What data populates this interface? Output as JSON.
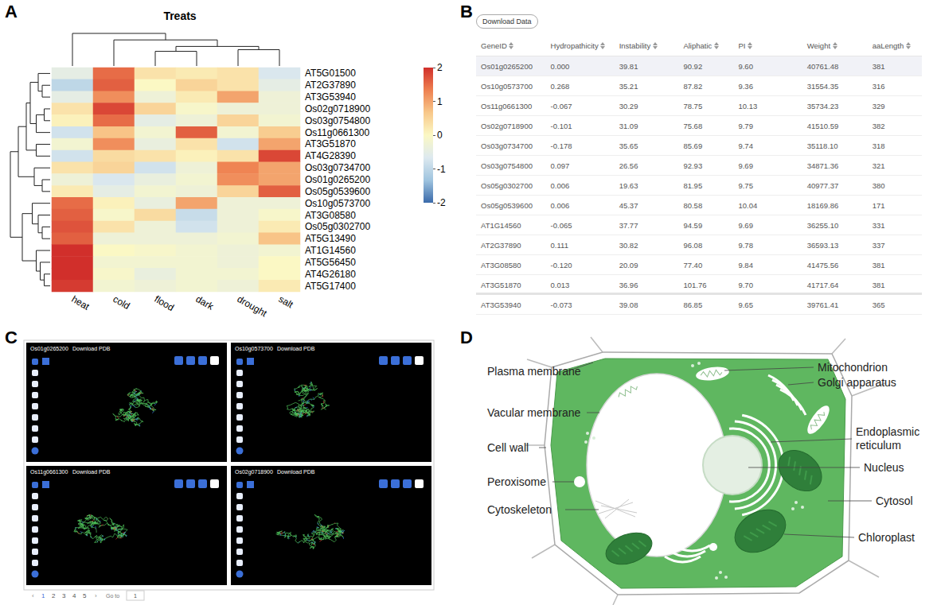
{
  "panel_labels": [
    "A",
    "B",
    "C",
    "D"
  ],
  "chart_data": {
    "type": "heatmap",
    "title": "Treats",
    "categories": [
      "heat",
      "cold",
      "flood",
      "dark",
      "drought",
      "salt"
    ],
    "rows": [
      "AT5G01500",
      "AT2G37890",
      "AT3G53940",
      "Os02g0718900",
      "Os03g0754800",
      "Os11g0661300",
      "AT3G51870",
      "AT4G28390",
      "Os03g0734700",
      "Os01g0265200",
      "Os05g0539600",
      "Os10g0573700",
      "AT3G08580",
      "Os05g0302700",
      "AT5G13490",
      "AT1G14560",
      "AT5G56450",
      "AT4G26180",
      "AT5G17400"
    ],
    "values": [
      [
        -0.5,
        1.5,
        0.3,
        0.2,
        0.3,
        -0.7
      ],
      [
        -1.0,
        1.6,
        0.0,
        0.5,
        0.3,
        -0.5
      ],
      [
        -0.5,
        1.2,
        -0.3,
        0.2,
        1.0,
        -0.3
      ],
      [
        0.3,
        1.8,
        0.5,
        -0.1,
        -0.3,
        -0.3
      ],
      [
        0.1,
        1.5,
        -0.5,
        -0.3,
        0.5,
        -0.2
      ],
      [
        -0.8,
        0.7,
        -0.2,
        1.6,
        -0.2,
        0.6
      ],
      [
        -0.2,
        1.2,
        -0.4,
        0.3,
        -0.8,
        1.0
      ],
      [
        -0.8,
        0.4,
        0.3,
        0.1,
        0.3,
        1.8
      ],
      [
        0.3,
        0.5,
        -0.8,
        -0.3,
        1.3,
        1.0
      ],
      [
        -0.3,
        -0.7,
        -0.4,
        -0.2,
        1.2,
        1.0
      ],
      [
        0.2,
        -0.5,
        -0.2,
        -0.3,
        0.5,
        1.6
      ],
      [
        1.5,
        0.1,
        -0.4,
        1.0,
        -0.3,
        -0.3
      ],
      [
        1.6,
        -0.1,
        0.4,
        -0.9,
        -0.3,
        -0.1
      ],
      [
        1.7,
        0.3,
        -0.3,
        -0.8,
        -0.3,
        0.2
      ],
      [
        1.6,
        -0.3,
        -0.3,
        -0.3,
        -0.2,
        0.7
      ],
      [
        2.0,
        0.0,
        -0.1,
        -0.2,
        -0.3,
        -0.2
      ],
      [
        2.0,
        -0.2,
        -0.2,
        -0.2,
        -0.3,
        0.0
      ],
      [
        2.0,
        -0.1,
        -0.4,
        -0.2,
        -0.2,
        0.0
      ],
      [
        1.9,
        -0.2,
        -0.3,
        -0.2,
        -0.3,
        0.2
      ]
    ],
    "color_range": [
      -2,
      2
    ],
    "color_ticks": [
      2,
      1,
      0,
      -1,
      -2
    ],
    "col_tree": {
      "h": 1,
      "c": [
        0,
        {
          "h": 0.8,
          "c": [
            1,
            {
              "h": 0.6,
              "c": [
                {
                  "h": 0.45,
                  "c": [
                    2,
                    3
                  ]
                },
                {
                  "h": 0.5,
                  "c": [
                    4,
                    5
                  ]
                }
              ]
            }
          ]
        }
      ]
    },
    "row_tree": {
      "h": 1,
      "c": [
        {
          "h": 0.8,
          "c": [
            {
              "h": 0.6,
              "c": [
                {
                  "h": 0.5,
                  "c": [
                    {
                      "h": 0.3,
                      "c": [
                        0,
                        {
                          "h": 0.2,
                          "c": [
                            1,
                            2
                          ]
                        }
                      ]
                    },
                    {
                      "h": 0.35,
                      "c": [
                        {
                          "h": 0.15,
                          "c": [
                            3,
                            4
                          ]
                        },
                        5
                      ]
                    }
                  ]
                },
                {
                  "h": 0.35,
                  "c": [
                    6,
                    7
                  ]
                }
              ]
            },
            {
              "h": 0.4,
              "c": [
                8,
                {
                  "h": 0.2,
                  "c": [
                    9,
                    10
                  ]
                }
              ]
            }
          ]
        },
        {
          "h": 0.7,
          "c": [
            {
              "h": 0.45,
              "c": [
                11,
                {
                  "h": 0.3,
                  "c": [
                    12,
                    {
                      "h": 0.2,
                      "c": [
                        13,
                        14
                      ]
                    }
                  ]
                }
              ]
            },
            {
              "h": 0.35,
              "c": [
                15,
                {
                  "h": 0.25,
                  "c": [
                    16,
                    {
                      "h": 0.15,
                      "c": [
                        17,
                        18
                      ]
                    }
                  ]
                }
              ]
            }
          ]
        }
      ]
    }
  },
  "table": {
    "button": "Download Data",
    "columns": [
      "GeneID",
      "Hydropathicity",
      "Instability",
      "Aliphatic",
      "PI",
      "Weight",
      "aaLength"
    ],
    "rows": [
      [
        "Os01g0265200",
        "0.000",
        "39.81",
        "90.92",
        "9.60",
        "40761.48",
        "381"
      ],
      [
        "Os10g0573700",
        "0.268",
        "35.21",
        "87.82",
        "9.36",
        "31554.35",
        "316"
      ],
      [
        "Os11g0661300",
        "-0.067",
        "30.29",
        "78.75",
        "10.13",
        "35734.23",
        "329"
      ],
      [
        "Os02g0718900",
        "-0.101",
        "31.09",
        "75.68",
        "9.79",
        "41510.59",
        "382"
      ],
      [
        "Os03g0734700",
        "-0.178",
        "35.65",
        "85.69",
        "9.74",
        "35118.10",
        "318"
      ],
      [
        "Os03g0754800",
        "0.097",
        "26.56",
        "92.93",
        "9.69",
        "34871.36",
        "321"
      ],
      [
        "Os05g0302700",
        "0.006",
        "19.63",
        "81.95",
        "9.75",
        "40977.37",
        "380"
      ],
      [
        "Os05g0539600",
        "0.006",
        "45.37",
        "80.58",
        "10.04",
        "18169.86",
        "171"
      ],
      [
        "AT1G14560",
        "-0.065",
        "37.77",
        "94.59",
        "9.69",
        "36255.10",
        "331"
      ],
      [
        "AT2G37890",
        "0.111",
        "30.82",
        "96.08",
        "9.78",
        "36593.13",
        "337"
      ],
      [
        "AT3G08580",
        "-0.120",
        "20.09",
        "77.40",
        "9.84",
        "41475.56",
        "381"
      ],
      [
        "AT3G51870",
        "0.013",
        "36.96",
        "101.76",
        "9.70",
        "41717.64",
        "381"
      ],
      [
        "AT3G53940",
        "-0.073",
        "39.08",
        "86.85",
        "9.65",
        "39761.41",
        "365"
      ]
    ]
  },
  "structures": {
    "viewers": [
      {
        "gene": "Os01g0265200",
        "link": "Download PDB"
      },
      {
        "gene": "Os10g0573700",
        "link": "Download PDB"
      },
      {
        "gene": "Os11g0661300",
        "link": "Download PDB"
      },
      {
        "gene": "Os02g0718900",
        "link": "Download PDB"
      }
    ],
    "pagination": {
      "prev": "‹",
      "pages": [
        "1",
        "2",
        "3",
        "4",
        "5"
      ],
      "next": "›",
      "goto": "Go to",
      "input": "1"
    }
  },
  "diagram": {
    "labels": [
      "Plasma membrane",
      "Vacular membrane",
      "Cell wall",
      "Peroxisome",
      "Cytoskeleton",
      "Mitochondrion",
      "Golgi apparatus",
      "Endoplasmic reticulum",
      "Nucleus",
      "Cytosol",
      "Chloroplast"
    ]
  }
}
